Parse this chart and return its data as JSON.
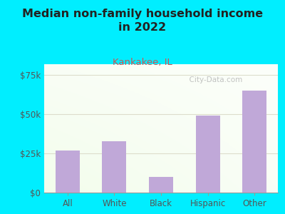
{
  "title": "Median non-family household income\nin 2022",
  "subtitle": "Kankakee, IL",
  "categories": [
    "All",
    "White",
    "Black",
    "Hispanic",
    "Other"
  ],
  "values": [
    27000,
    33000,
    10000,
    49000,
    65000
  ],
  "bar_color": "#c0a8d8",
  "yticks": [
    0,
    25000,
    50000,
    75000
  ],
  "ytick_labels": [
    "$0",
    "$25k",
    "$50k",
    "$75k"
  ],
  "ylim": [
    0,
    82000
  ],
  "background_outer": "#00eeff",
  "title_color": "#222222",
  "subtitle_color": "#cc5555",
  "tick_label_color": "#555555",
  "watermark": "  City-Data.com",
  "title_fontsize": 11.5,
  "subtitle_fontsize": 9.5,
  "tick_fontsize": 8.5,
  "grid_color": "#ddddcc",
  "spine_color": "#999999"
}
